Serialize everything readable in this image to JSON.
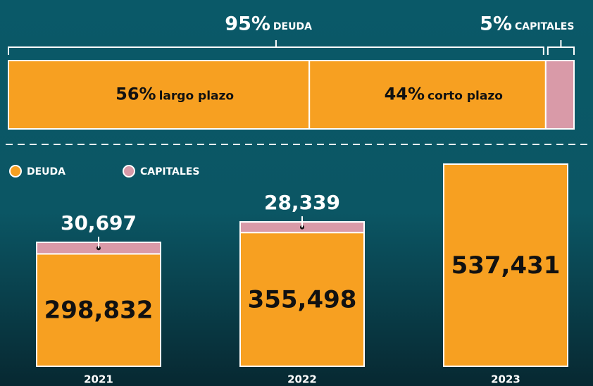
{
  "chart_data": [
    {
      "type": "share-bar",
      "categories": [
        "DEUDA",
        "CAPITALES"
      ],
      "values": [
        95,
        5
      ],
      "value_labels": [
        "95%",
        "5%"
      ],
      "colors": [
        "#f7a021",
        "#d99aa8"
      ],
      "breakdown": {
        "categories": [
          "largo plazo",
          "corto plazo"
        ],
        "values": [
          56,
          44
        ],
        "value_labels": [
          "56%",
          "44%"
        ]
      }
    },
    {
      "type": "stacked-bar",
      "categories": [
        "2021",
        "2022",
        "2023"
      ],
      "series": [
        {
          "name": "DEUDA",
          "color": "#f7a021",
          "values": [
            298832,
            355498,
            537431
          ],
          "value_labels": [
            "298,832",
            "355,498",
            "537,431"
          ]
        },
        {
          "name": "CAPITALES",
          "color": "#d99aa8",
          "values": [
            30697,
            28339,
            null
          ],
          "value_labels": [
            "30,697",
            "28,339",
            null
          ]
        }
      ]
    }
  ]
}
